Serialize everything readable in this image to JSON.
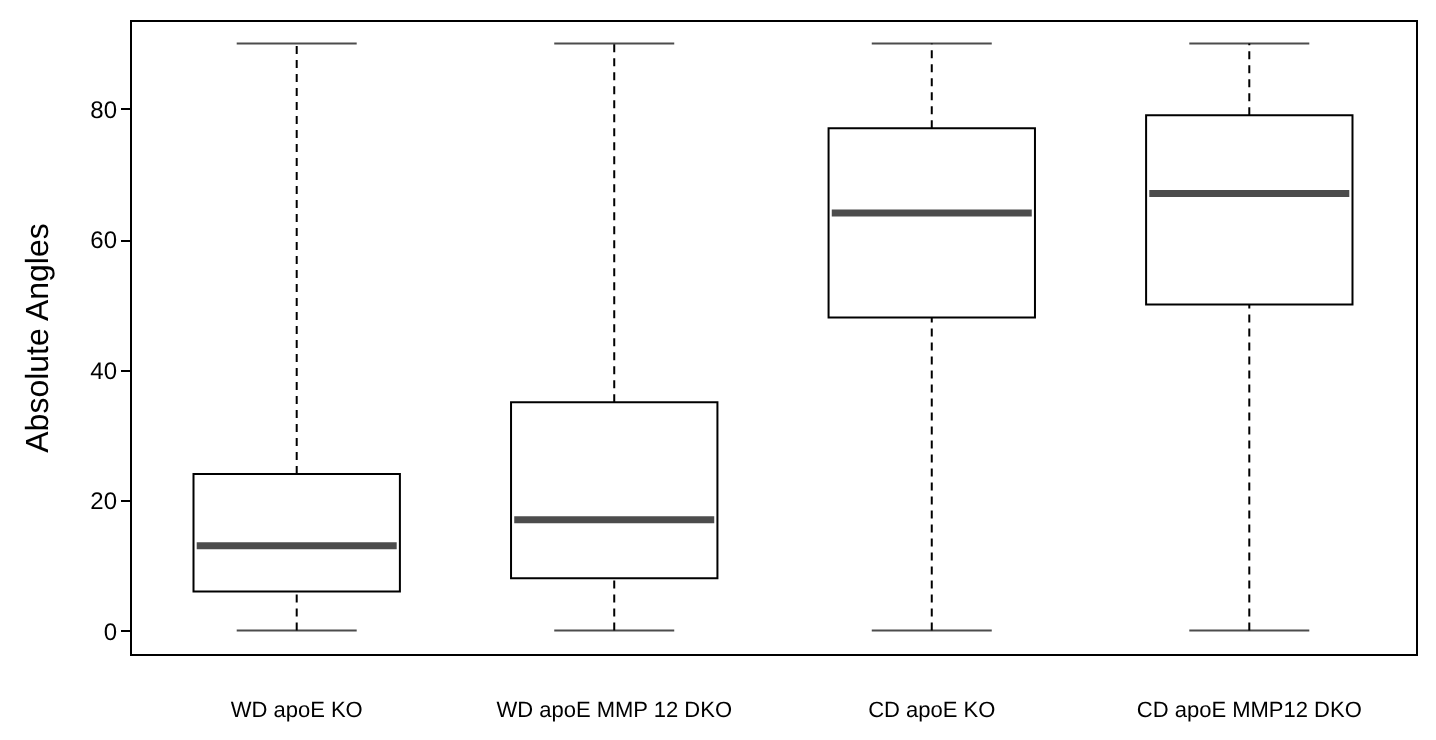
{
  "chart_data": {
    "type": "box",
    "ylabel": "Absolute Angles",
    "categories": [
      "WD apoE KO",
      "WD apoE MMP 12  DKO",
      "CD apoE KO",
      "CD apoE MMP12 DKO"
    ],
    "boxes": [
      {
        "low": 0,
        "q1": 6,
        "median": 13,
        "q3": 24,
        "high": 90
      },
      {
        "low": 0,
        "q1": 8,
        "median": 17,
        "q3": 35,
        "high": 90
      },
      {
        "low": 0,
        "q1": 48,
        "median": 64,
        "q3": 77,
        "high": 90
      },
      {
        "low": 0,
        "q1": 50,
        "median": 67,
        "q3": 79,
        "high": 90
      }
    ],
    "ylim": [
      -3.6,
      93.6
    ],
    "yticks": [
      0,
      20,
      40,
      60,
      80
    ],
    "line_style": "dashed"
  }
}
